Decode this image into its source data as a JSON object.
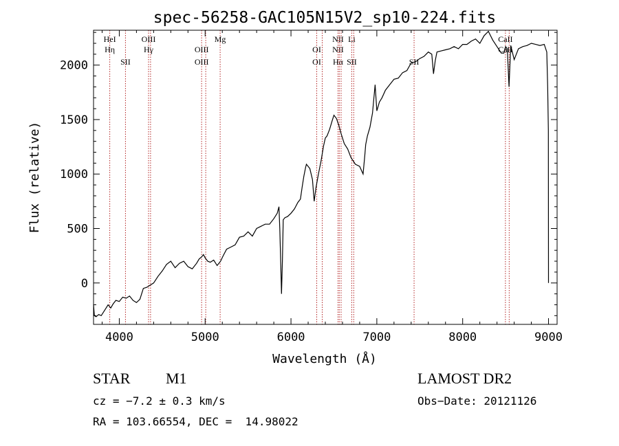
{
  "chart_data": {
    "type": "line",
    "title": "spec-56258-GAC105N15V2_sp10-224.fits",
    "xlabel": "Wavelength (Å)",
    "ylabel": "Flux (relative)",
    "xlim": [
      3700,
      9100
    ],
    "ylim": [
      -380,
      2320
    ],
    "xticks": [
      4000,
      5000,
      6000,
      7000,
      8000,
      9000
    ],
    "xtick_labels": [
      "4000",
      "5000",
      "6000",
      "7000",
      "8000",
      "9000"
    ],
    "yticks": [
      0,
      500,
      1000,
      1500,
      2000
    ],
    "ytick_labels": [
      "0",
      "500",
      "1000",
      "1500",
      "2000"
    ],
    "grid": false,
    "series": [
      {
        "x": [
          3700,
          3710,
          3730,
          3760,
          3790,
          3830,
          3870,
          3900,
          3930,
          3960,
          4000,
          4040,
          4080,
          4120,
          4160,
          4200,
          4240,
          4280,
          4320,
          4360,
          4400,
          4450,
          4500,
          4550,
          4600,
          4650,
          4700,
          4750,
          4800,
          4850,
          4900,
          4930,
          4960,
          4980,
          5000,
          5030,
          5060,
          5100,
          5140,
          5180,
          5210,
          5250,
          5300,
          5350,
          5400,
          5450,
          5500,
          5550,
          5600,
          5650,
          5700,
          5750,
          5800,
          5840,
          5860,
          5870,
          5880,
          5890,
          5900,
          5910,
          5930,
          5960,
          6000,
          6040,
          6080,
          6110,
          6130,
          6150,
          6170,
          6180,
          6200,
          6220,
          6250,
          6270,
          6290,
          6320,
          6350,
          6380,
          6400,
          6420,
          6450,
          6480,
          6500,
          6530,
          6560,
          6580,
          6620,
          6660,
          6700,
          6750,
          6800,
          6840,
          6860,
          6870,
          6890,
          6920,
          6950,
          6980,
          7000,
          7030,
          7060,
          7100,
          7150,
          7200,
          7250,
          7300,
          7350,
          7400,
          7450,
          7500,
          7550,
          7600,
          7640,
          7660,
          7680,
          7700,
          7750,
          7800,
          7850,
          7900,
          7950,
          8000,
          8050,
          8100,
          8150,
          8200,
          8250,
          8300,
          8350,
          8400,
          8450,
          8480,
          8500,
          8520,
          8540,
          8560,
          8600,
          8650,
          8700,
          8750,
          8800,
          8850,
          8900,
          8950,
          8980,
          8990,
          8998,
          9000
        ],
        "y": [
          -200,
          -300,
          -310,
          -290,
          -300,
          -250,
          -200,
          -230,
          -190,
          -160,
          -170,
          -130,
          -140,
          -120,
          -160,
          -180,
          -150,
          -50,
          -40,
          -20,
          0,
          60,
          110,
          170,
          200,
          140,
          180,
          200,
          150,
          130,
          180,
          220,
          240,
          260,
          230,
          200,
          190,
          210,
          160,
          200,
          250,
          310,
          330,
          350,
          420,
          430,
          470,
          430,
          500,
          520,
          540,
          540,
          590,
          640,
          700,
          500,
          200,
          -100,
          200,
          580,
          600,
          610,
          640,
          680,
          740,
          770,
          880,
          980,
          1060,
          1090,
          1070,
          1050,
          950,
          750,
          870,
          1000,
          1120,
          1260,
          1330,
          1350,
          1410,
          1490,
          1540,
          1510,
          1440,
          1380,
          1280,
          1230,
          1150,
          1090,
          1070,
          1000,
          1170,
          1270,
          1350,
          1430,
          1560,
          1820,
          1580,
          1660,
          1700,
          1770,
          1820,
          1870,
          1880,
          1930,
          1950,
          2020,
          2030,
          2060,
          2080,
          2120,
          2100,
          1920,
          2040,
          2120,
          2130,
          2140,
          2150,
          2170,
          2150,
          2190,
          2190,
          2220,
          2240,
          2200,
          2270,
          2310,
          2230,
          2170,
          2110,
          2110,
          2170,
          2150,
          1800,
          2180,
          2050,
          2150,
          2170,
          2180,
          2200,
          2190,
          2180,
          2190,
          2120,
          1800,
          1400,
          0
        ]
      }
    ],
    "lines": [
      {
        "x": 3889,
        "labels": [
          "HeI",
          "Hη"
        ],
        "rows": [
          0,
          1
        ]
      },
      {
        "x": 4072,
        "labels": [
          "SII"
        ],
        "rows": [
          2
        ]
      },
      {
        "x": 4341,
        "labels": [
          "OIII",
          "Hγ"
        ],
        "rows": [
          0,
          1
        ]
      },
      {
        "x": 4364,
        "labels": [],
        "rows": []
      },
      {
        "x": 4959,
        "labels": [
          "OIII",
          "OIII"
        ],
        "rows": [
          1,
          2
        ]
      },
      {
        "x": 5007,
        "labels": [],
        "rows": []
      },
      {
        "x": 5175,
        "labels": [
          "Mg"
        ],
        "rows": [
          0
        ]
      },
      {
        "x": 6300,
        "labels": [
          "OI",
          "OI"
        ],
        "rows": [
          1,
          2
        ]
      },
      {
        "x": 6364,
        "labels": [],
        "rows": []
      },
      {
        "x": 6548,
        "labels": [
          "NII",
          "NII",
          "Hα"
        ],
        "rows": [
          0,
          1,
          2
        ]
      },
      {
        "x": 6563,
        "labels": [],
        "rows": []
      },
      {
        "x": 6584,
        "labels": [],
        "rows": []
      },
      {
        "x": 6708,
        "labels": [
          "Li",
          "SII"
        ],
        "rows": [
          0,
          2
        ]
      },
      {
        "x": 6731,
        "labels": [],
        "rows": []
      },
      {
        "x": 7434,
        "labels": [
          "SII"
        ],
        "rows": [
          2
        ]
      },
      {
        "x": 8498,
        "labels": [
          "CaII",
          "CaII"
        ],
        "rows": [
          0,
          1
        ]
      },
      {
        "x": 8542,
        "labels": [],
        "rows": []
      }
    ]
  },
  "info": {
    "object_type": "STAR",
    "subclass": "M1",
    "cz": "cz = −7.2 ± 0.3 km/s",
    "coords": "RA = 103.66554, DEC =  14.98022",
    "survey": "LAMOST DR2",
    "obs_date": "Obs−Date: 20121126"
  },
  "colors": {
    "spectrum": "#000000",
    "line_marker": "#b22222",
    "axis": "#000000"
  }
}
